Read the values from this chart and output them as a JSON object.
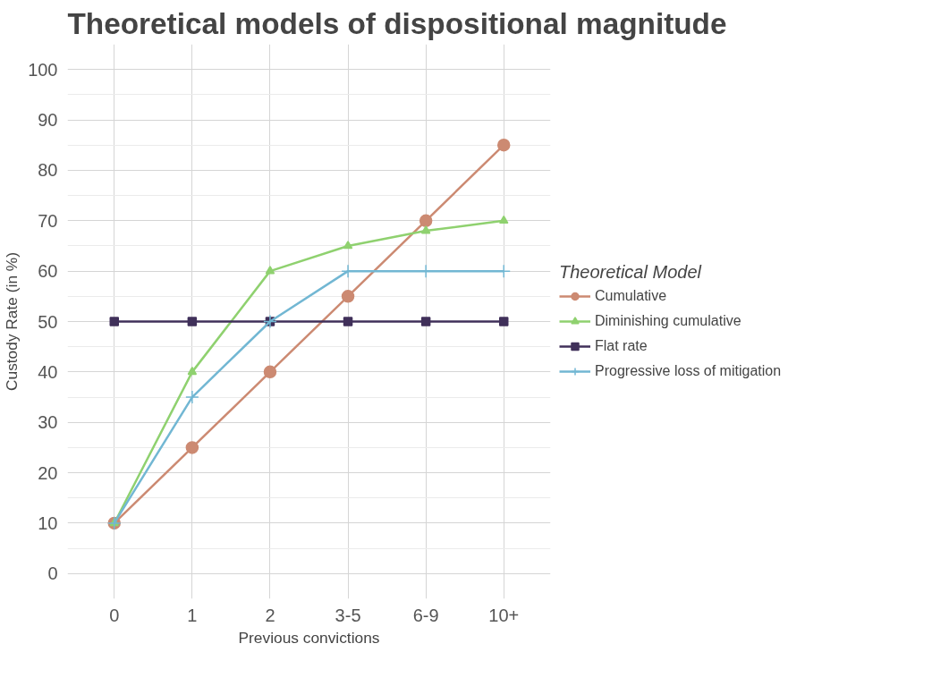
{
  "chart_data": {
    "type": "line",
    "title": "Theoretical models of dispositional magnitude",
    "xlabel": "Previous convictions",
    "ylabel": "Custody Rate (in %)",
    "legend_title": "Theoretical Model",
    "legend": "right",
    "categories": [
      "0",
      "1",
      "2",
      "3-5",
      "6-9",
      "10+"
    ],
    "ylim": [
      -5,
      105
    ],
    "yticks": [
      0,
      10,
      20,
      30,
      40,
      50,
      60,
      70,
      80,
      90,
      100
    ],
    "grid": true,
    "series": [
      {
        "name": "Cumulative",
        "color": "#cc8a72",
        "marker": "circle",
        "values": [
          10,
          25,
          40,
          55,
          70,
          85
        ]
      },
      {
        "name": "Diminishing cumulative",
        "color": "#8fd16f",
        "marker": "triangle",
        "values": [
          10,
          40,
          60,
          65,
          68,
          70
        ]
      },
      {
        "name": "Flat rate",
        "color": "#40305a",
        "marker": "square",
        "values": [
          50,
          50,
          50,
          50,
          50,
          50
        ]
      },
      {
        "name": "Progressive loss of mitigation",
        "color": "#72b7d3",
        "marker": "cross",
        "values": [
          10,
          35,
          50,
          60,
          60,
          60
        ]
      }
    ]
  }
}
